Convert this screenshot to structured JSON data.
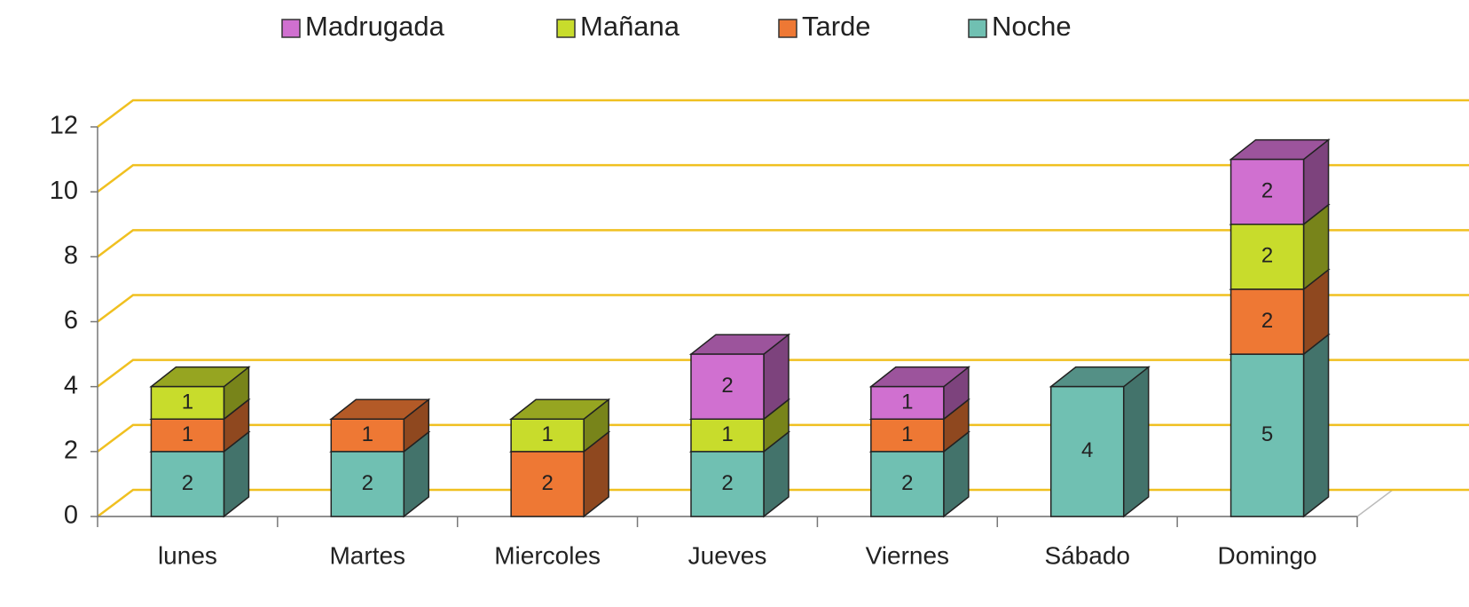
{
  "chart_data": {
    "type": "bar3d_stacked",
    "categories": [
      "lunes",
      "Martes",
      "Miercoles",
      "Jueves",
      "Viernes",
      "Sábado",
      "Domingo"
    ],
    "series": [
      {
        "name": "Madrugada",
        "color": "#d070d0",
        "values": [
          0,
          0,
          0,
          2,
          1,
          0,
          2
        ]
      },
      {
        "name": "Mañana",
        "color": "#c8dc2c",
        "values": [
          1,
          0,
          1,
          1,
          0,
          0,
          2
        ]
      },
      {
        "name": "Tarde",
        "color": "#ee7834",
        "values": [
          1,
          1,
          2,
          0,
          1,
          0,
          2
        ]
      },
      {
        "name": "Noche",
        "color": "#70c0b2",
        "values": [
          2,
          2,
          0,
          2,
          2,
          4,
          5
        ]
      }
    ],
    "ylim": [
      0,
      12
    ],
    "yticks": [
      0,
      2,
      4,
      6,
      8,
      10,
      12
    ],
    "grid": true,
    "grid_color": "#f0c020",
    "legend": "top"
  }
}
